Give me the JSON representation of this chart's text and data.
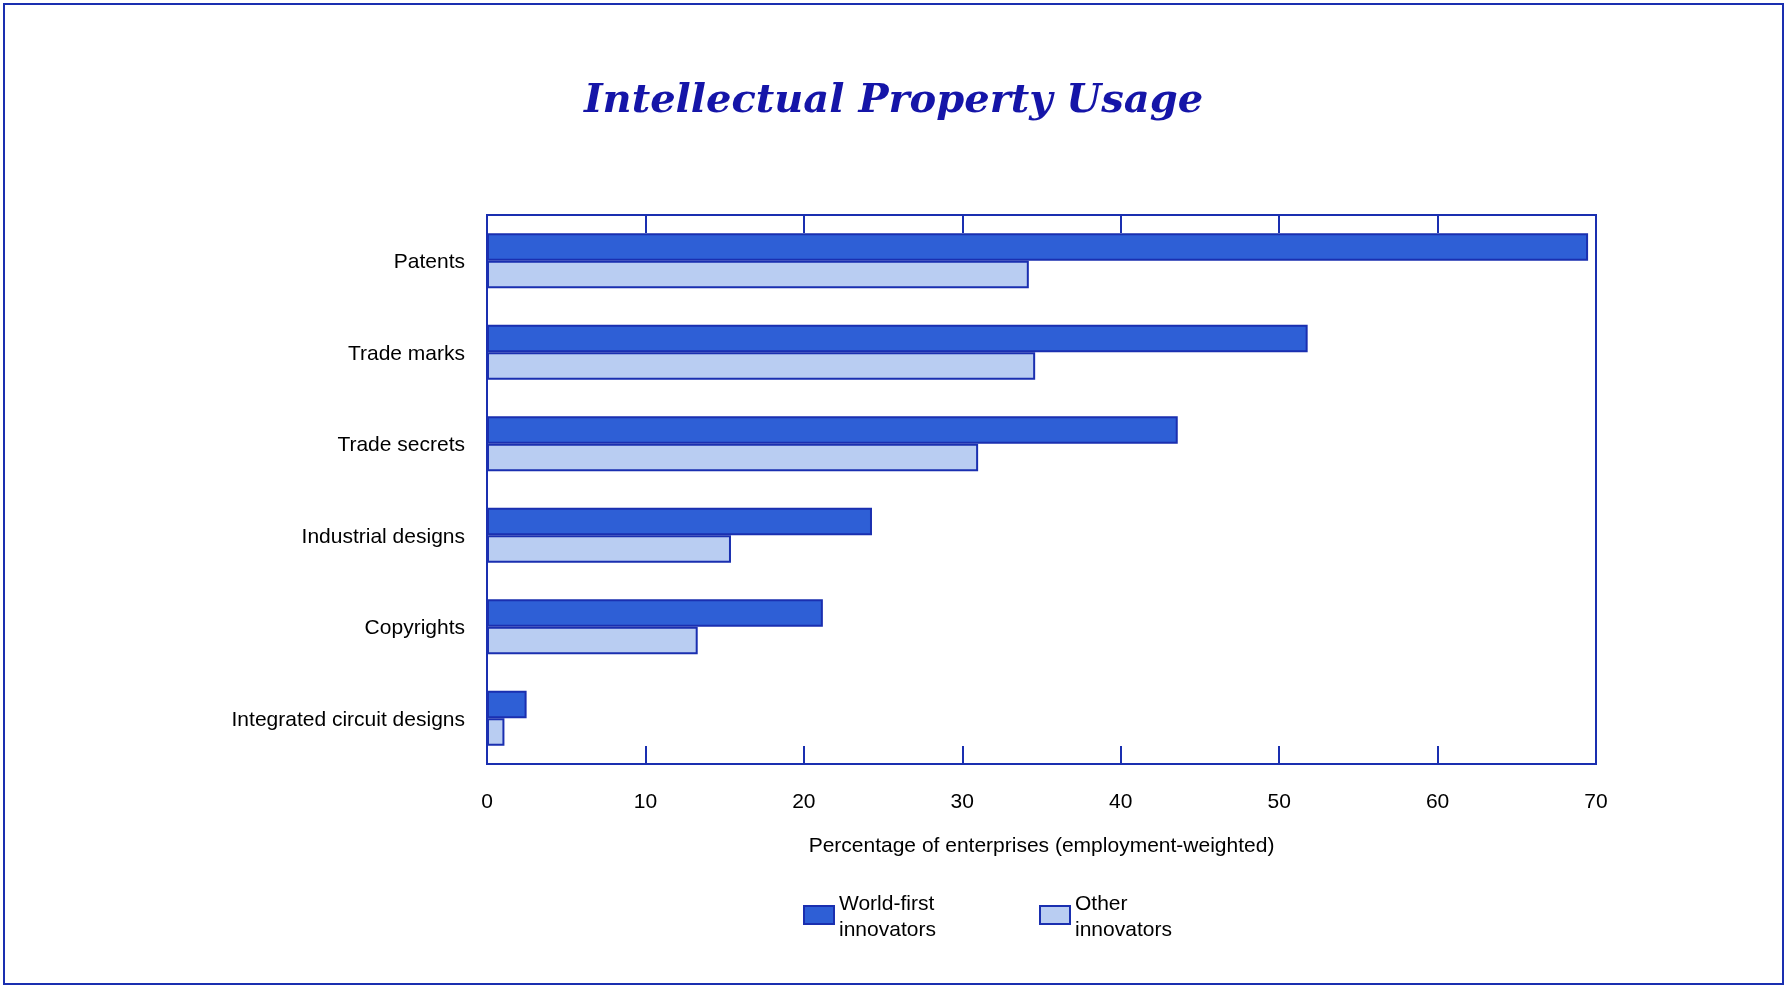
{
  "chart_data": {
    "type": "bar",
    "orientation": "horizontal",
    "title": "Intellectual Property Usage",
    "xlabel": "Percentage of enterprises (employment-weighted)",
    "categories": [
      "Patents",
      "Trade marks",
      "Trade secrets",
      "Industrial designs",
      "Copyrights",
      "Integrated circuit designs"
    ],
    "series": [
      {
        "name": "World-first innovators",
        "color": "#2e5fd6",
        "values": [
          69.5,
          51.8,
          43.6,
          24.3,
          21.2,
          2.5
        ]
      },
      {
        "name": "Other innovators",
        "color": "#b9cdf2",
        "values": [
          34.2,
          34.6,
          31.0,
          15.4,
          13.3,
          1.1
        ]
      }
    ],
    "xlim": [
      0,
      70
    ],
    "xticks": [
      0,
      10,
      20,
      30,
      40,
      50,
      60,
      70
    ],
    "grid": false,
    "legend": "bottom"
  }
}
